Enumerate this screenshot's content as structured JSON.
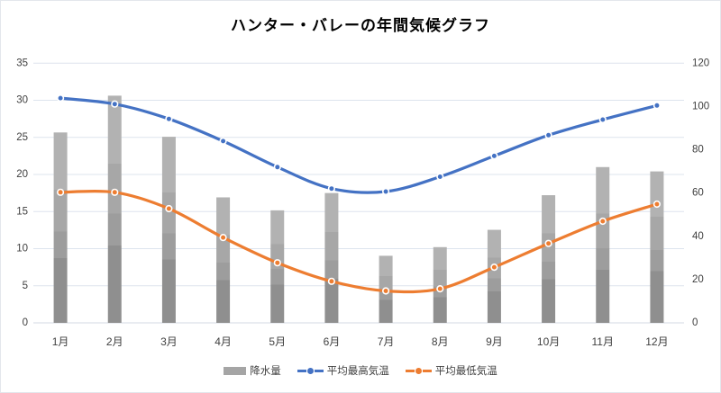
{
  "title": "ハンター・バレーの年間気候グラフ",
  "chart_data": {
    "type": "combo-bar-line",
    "title": "ハンター・バレーの年間気候グラフ",
    "categories": [
      "1月",
      "2月",
      "3月",
      "4月",
      "5月",
      "6月",
      "7月",
      "8月",
      "9月",
      "10月",
      "11月",
      "12月"
    ],
    "series": [
      {
        "name": "降水量",
        "type": "bar",
        "axis": "right",
        "color": "#a5a5a5",
        "values": [
          88,
          105,
          86,
          58,
          52,
          60,
          31,
          35,
          43,
          59,
          72,
          70
        ]
      },
      {
        "name": "平均最高気温",
        "type": "line",
        "axis": "left",
        "color": "#4472c4",
        "values": [
          30.3,
          29.5,
          27.5,
          24.5,
          21.0,
          18.1,
          17.7,
          19.7,
          22.5,
          25.3,
          27.4,
          29.3
        ]
      },
      {
        "name": "平均最低気温",
        "type": "line",
        "axis": "left",
        "color": "#ed7d31",
        "values": [
          17.6,
          17.6,
          15.4,
          11.5,
          8.1,
          5.6,
          4.3,
          4.6,
          7.5,
          10.7,
          13.7,
          16.0
        ]
      }
    ],
    "axes": {
      "left": {
        "min": 0,
        "max": 35,
        "step": 5,
        "ticks": [
          0,
          5,
          10,
          15,
          20,
          25,
          30,
          35
        ]
      },
      "right": {
        "min": 0,
        "max": 120,
        "step": 20,
        "ticks": [
          0,
          20,
          40,
          60,
          80,
          100,
          120
        ]
      }
    },
    "grid": "horizontal",
    "smoothed_lines": true,
    "legend_position": "bottom",
    "colors": {
      "gridline": "#dde4ee",
      "axis_line": "#d3dae3",
      "tick_text": "#404040",
      "bar_shade_top": "#b2b2b2",
      "bar_shade_mid1": "#a7a7a7",
      "bar_shade_mid2": "#9d9d9d",
      "bar_shade_bottom": "#8f8f8f"
    }
  }
}
